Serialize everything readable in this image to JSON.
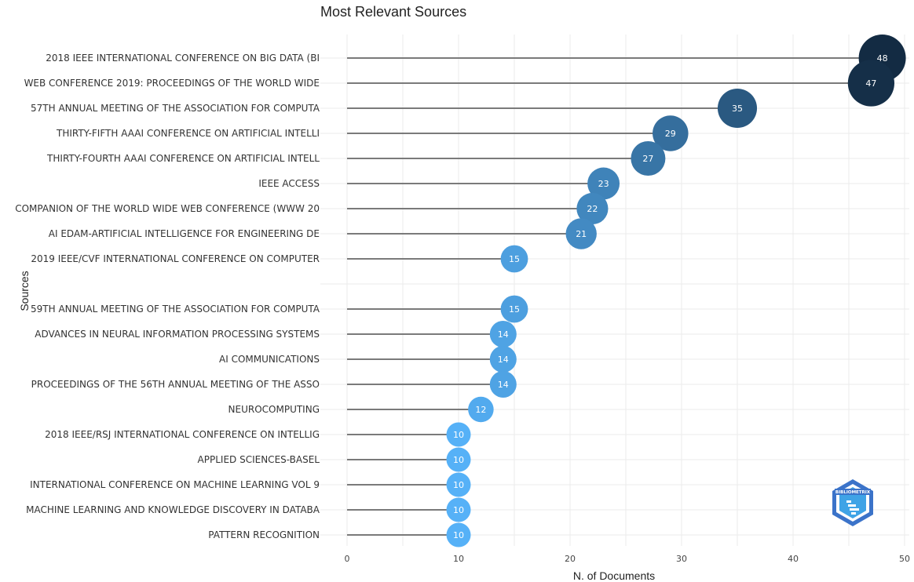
{
  "chart_data": {
    "type": "scatter",
    "title": "Most Relevant Sources",
    "xlabel": "N. of Documents",
    "ylabel": "Sources",
    "xlim": [
      0,
      50
    ],
    "xticks": [
      0,
      10,
      20,
      30,
      40,
      50
    ],
    "grid": true,
    "categories": [
      "2018 IEEE INTERNATIONAL CONFERENCE ON BIG DATA (BI",
      "WEB CONFERENCE 2019: PROCEEDINGS OF THE WORLD WIDE",
      "57TH ANNUAL MEETING OF THE ASSOCIATION FOR COMPUTA",
      "THIRTY-FIFTH AAAI CONFERENCE ON ARTIFICIAL INTELLI",
      "THIRTY-FOURTH AAAI CONFERENCE ON ARTIFICIAL INTELL",
      "IEEE ACCESS",
      "COMPANION OF THE WORLD WIDE WEB CONFERENCE (WWW 20",
      "AI EDAM-ARTIFICIAL INTELLIGENCE FOR ENGINEERING DE",
      "2019 IEEE/CVF INTERNATIONAL CONFERENCE ON COMPUTER",
      "",
      "59TH ANNUAL MEETING OF THE ASSOCIATION FOR COMPUTA",
      "ADVANCES IN NEURAL INFORMATION PROCESSING SYSTEMS",
      "AI COMMUNICATIONS",
      "PROCEEDINGS OF THE 56TH ANNUAL MEETING OF THE ASSO",
      "NEUROCOMPUTING",
      "2018 IEEE/RSJ INTERNATIONAL CONFERENCE ON INTELLIG",
      "APPLIED SCIENCES-BASEL",
      "INTERNATIONAL CONFERENCE ON MACHINE LEARNING VOL 9",
      "MACHINE LEARNING AND KNOWLEDGE DISCOVERY IN DATABA",
      "PATTERN RECOGNITION"
    ],
    "values": [
      48,
      47,
      35,
      29,
      27,
      23,
      22,
      21,
      15,
      null,
      15,
      14,
      14,
      14,
      12,
      10,
      10,
      10,
      10,
      10
    ],
    "color_scale": {
      "low": "#56b1f7",
      "high": "#132b43"
    }
  },
  "watermark": {
    "text": "BIBLIOMETRIX",
    "icon": "bibliometrix-logo-icon"
  }
}
